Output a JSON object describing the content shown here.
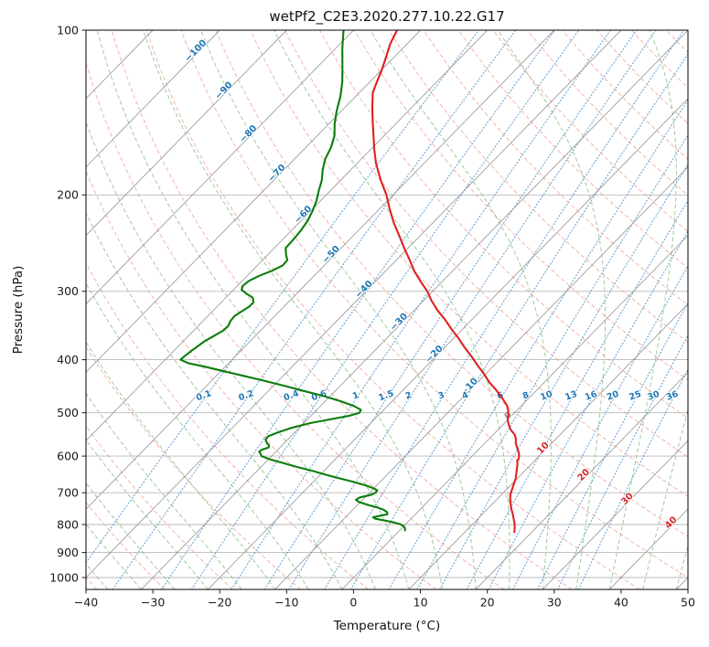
{
  "title": "wetPf2_C2E3.2020.277.10.22.G17",
  "axes": {
    "x_label": "Temperature (°C)",
    "y_label": "Pressure (hPa)",
    "x_ticks": [
      {
        "v": -40,
        "label": "−40"
      },
      {
        "v": -30,
        "label": "−30"
      },
      {
        "v": -20,
        "label": "−20"
      },
      {
        "v": -10,
        "label": "−10"
      },
      {
        "v": 0,
        "label": "0"
      },
      {
        "v": 10,
        "label": "10"
      },
      {
        "v": 20,
        "label": "20"
      },
      {
        "v": 30,
        "label": "30"
      },
      {
        "v": 40,
        "label": "40"
      },
      {
        "v": 50,
        "label": "50"
      }
    ],
    "y_ticks": [
      {
        "v": 100,
        "label": "100"
      },
      {
        "v": 200,
        "label": "200"
      },
      {
        "v": 300,
        "label": "300"
      },
      {
        "v": 400,
        "label": "400"
      },
      {
        "v": 500,
        "label": "500"
      },
      {
        "v": 600,
        "label": "600"
      },
      {
        "v": 700,
        "label": "700"
      },
      {
        "v": 800,
        "label": "800"
      },
      {
        "v": 900,
        "label": "900"
      },
      {
        "v": 1000,
        "label": "1000"
      }
    ]
  },
  "chart_data": {
    "type": "line",
    "variant": "skew-T log-p sounding",
    "title": "wetPf2_C2E3.2020.277.10.22.G17",
    "xlabel": "Temperature (°C)",
    "ylabel": "Pressure (hPa)",
    "xlim": [
      -40,
      50
    ],
    "pressure_lim": [
      100,
      1051
    ],
    "skew_deg_per_decade": 80,
    "grid": true,
    "isotherms": {
      "start": -150,
      "end": 50,
      "step": 10
    },
    "isotherm_labels": [
      {
        "label": "−100",
        "t": -100,
        "p": 110
      },
      {
        "label": "−90",
        "t": -90,
        "p": 130
      },
      {
        "label": "−80",
        "t": -80,
        "p": 156
      },
      {
        "label": "−70",
        "t": -70,
        "p": 184
      },
      {
        "label": "−60",
        "t": -60,
        "p": 219
      },
      {
        "label": "−50",
        "t": -50,
        "p": 259
      },
      {
        "label": "−40",
        "t": -40,
        "p": 300
      },
      {
        "label": "−30",
        "t": -30,
        "p": 344
      },
      {
        "label": "−20",
        "t": -20,
        "p": 394
      },
      {
        "label": "−10",
        "t": -10,
        "p": 452
      },
      {
        "label": "0",
        "t": 0,
        "p": 510
      },
      {
        "label": "10",
        "t": 10,
        "p": 585
      },
      {
        "label": "20",
        "t": 20,
        "p": 655
      },
      {
        "label": "30",
        "t": 30,
        "p": 724
      },
      {
        "label": "40",
        "t": 40,
        "p": 800
      }
    ],
    "mixing_ratios": [
      {
        "label": "0.1",
        "w": 0.1
      },
      {
        "label": "0.2",
        "w": 0.2
      },
      {
        "label": "0.4",
        "w": 0.4
      },
      {
        "label": "0.6",
        "w": 0.6
      },
      {
        "label": "1",
        "w": 1
      },
      {
        "label": "1.5",
        "w": 1.5
      },
      {
        "label": "2",
        "w": 2
      },
      {
        "label": "3",
        "w": 3
      },
      {
        "label": "4",
        "w": 4
      },
      {
        "label": "6",
        "w": 6
      },
      {
        "label": "8",
        "w": 8
      },
      {
        "label": "10",
        "w": 10
      },
      {
        "label": "13",
        "w": 13
      },
      {
        "label": "16",
        "w": 16
      },
      {
        "label": "20",
        "w": 20
      },
      {
        "label": "25",
        "w": 25
      },
      {
        "label": "30",
        "w": 30
      },
      {
        "label": "36",
        "w": 36
      }
    ],
    "mixing_label_pressure": 470,
    "dry_adiabats": {
      "start": -40,
      "end": 200,
      "step": 10
    },
    "moist_adiabats": {
      "start": -40,
      "end": 50,
      "step": 5
    },
    "series": [
      {
        "name": "temperature",
        "color": "#e02020",
        "points": [
          [
            100,
            -73.5
          ],
          [
            106,
            -72.5
          ],
          [
            112,
            -71.2
          ],
          [
            118,
            -70.0
          ],
          [
            124,
            -69.0
          ],
          [
            130,
            -68.0
          ],
          [
            138,
            -66.0
          ],
          [
            146,
            -64.0
          ],
          [
            155,
            -61.8
          ],
          [
            165,
            -59.5
          ],
          [
            175,
            -57.2
          ],
          [
            188,
            -54.0
          ],
          [
            200,
            -51.0
          ],
          [
            212,
            -48.5
          ],
          [
            225,
            -45.8
          ],
          [
            238,
            -43.0
          ],
          [
            250,
            -40.6
          ],
          [
            263,
            -38.0
          ],
          [
            275,
            -35.8
          ],
          [
            288,
            -33.2
          ],
          [
            300,
            -30.8
          ],
          [
            312,
            -28.8
          ],
          [
            325,
            -26.5
          ],
          [
            338,
            -24.0
          ],
          [
            352,
            -21.6
          ],
          [
            366,
            -19.2
          ],
          [
            380,
            -17.0
          ],
          [
            395,
            -14.6
          ],
          [
            410,
            -12.4
          ],
          [
            425,
            -10.2
          ],
          [
            440,
            -8.2
          ],
          [
            455,
            -6.0
          ],
          [
            470,
            -4.0
          ],
          [
            485,
            -2.2
          ],
          [
            495,
            -1.3
          ],
          [
            505,
            -0.6
          ],
          [
            515,
            0.0
          ],
          [
            525,
            0.8
          ],
          [
            538,
            2.0
          ],
          [
            548,
            3.2
          ],
          [
            558,
            4.0
          ],
          [
            568,
            4.6
          ],
          [
            578,
            5.4
          ],
          [
            588,
            6.2
          ],
          [
            598,
            6.9
          ],
          [
            606,
            7.3
          ],
          [
            612,
            7.4
          ],
          [
            620,
            7.9
          ],
          [
            630,
            8.4
          ],
          [
            645,
            9.1
          ],
          [
            660,
            9.8
          ],
          [
            675,
            10.3
          ],
          [
            690,
            10.8
          ],
          [
            705,
            11.3
          ],
          [
            720,
            12.0
          ],
          [
            735,
            12.8
          ],
          [
            750,
            13.6
          ],
          [
            765,
            14.5
          ],
          [
            780,
            15.3
          ],
          [
            795,
            16.1
          ],
          [
            808,
            16.7
          ],
          [
            818,
            17.1
          ],
          [
            826,
            17.4
          ]
        ]
      },
      {
        "name": "dewpoint",
        "color": "#0a7d0a",
        "points": [
          [
            100,
            -81.5
          ],
          [
            108,
            -79.0
          ],
          [
            116,
            -76.5
          ],
          [
            124,
            -74.2
          ],
          [
            132,
            -72.3
          ],
          [
            140,
            -70.8
          ],
          [
            148,
            -69.2
          ],
          [
            156,
            -67.4
          ],
          [
            164,
            -66.2
          ],
          [
            172,
            -65.4
          ],
          [
            180,
            -64.2
          ],
          [
            188,
            -62.8
          ],
          [
            196,
            -61.8
          ],
          [
            205,
            -60.6
          ],
          [
            214,
            -59.7
          ],
          [
            223,
            -59.0
          ],
          [
            232,
            -58.6
          ],
          [
            241,
            -58.4
          ],
          [
            250,
            -58.3
          ],
          [
            257,
            -57.3
          ],
          [
            263,
            -56.3
          ],
          [
            269,
            -56.2
          ],
          [
            275,
            -57.0
          ],
          [
            281,
            -58.2
          ],
          [
            287,
            -59.0
          ],
          [
            293,
            -59.2
          ],
          [
            298,
            -58.8
          ],
          [
            303,
            -57.5
          ],
          [
            308,
            -56.0
          ],
          [
            314,
            -55.2
          ],
          [
            320,
            -55.2
          ],
          [
            326,
            -55.6
          ],
          [
            333,
            -56.0
          ],
          [
            340,
            -55.9
          ],
          [
            347,
            -55.5
          ],
          [
            354,
            -55.6
          ],
          [
            362,
            -56.2
          ],
          [
            370,
            -56.8
          ],
          [
            378,
            -57.1
          ],
          [
            386,
            -57.4
          ],
          [
            394,
            -57.6
          ],
          [
            400,
            -57.7
          ],
          [
            406,
            -56.0
          ],
          [
            412,
            -53.0
          ],
          [
            420,
            -49.5
          ],
          [
            428,
            -46.0
          ],
          [
            436,
            -42.5
          ],
          [
            446,
            -38.5
          ],
          [
            456,
            -34.8
          ],
          [
            466,
            -31.0
          ],
          [
            476,
            -27.8
          ],
          [
            486,
            -25.0
          ],
          [
            494,
            -23.4
          ],
          [
            500,
            -23.2
          ],
          [
            506,
            -24.2
          ],
          [
            514,
            -26.6
          ],
          [
            522,
            -29.0
          ],
          [
            532,
            -31.0
          ],
          [
            542,
            -32.4
          ],
          [
            552,
            -33.4
          ],
          [
            560,
            -33.3
          ],
          [
            568,
            -32.6
          ],
          [
            574,
            -31.9
          ],
          [
            579,
            -31.7
          ],
          [
            584,
            -32.4
          ],
          [
            589,
            -32.5
          ],
          [
            594,
            -32.0
          ],
          [
            600,
            -31.5
          ],
          [
            608,
            -29.8
          ],
          [
            618,
            -27.2
          ],
          [
            628,
            -24.6
          ],
          [
            638,
            -21.8
          ],
          [
            648,
            -19.4
          ],
          [
            658,
            -16.8
          ],
          [
            668,
            -14.2
          ],
          [
            678,
            -11.8
          ],
          [
            686,
            -10.2
          ],
          [
            693,
            -9.2
          ],
          [
            700,
            -9.1
          ],
          [
            707,
            -9.6
          ],
          [
            714,
            -10.8
          ],
          [
            721,
            -11.0
          ],
          [
            728,
            -10.2
          ],
          [
            736,
            -8.6
          ],
          [
            744,
            -6.8
          ],
          [
            752,
            -5.4
          ],
          [
            760,
            -4.5
          ],
          [
            766,
            -4.2
          ],
          [
            771,
            -5.0
          ],
          [
            776,
            -5.9
          ],
          [
            781,
            -5.3
          ],
          [
            787,
            -3.6
          ],
          [
            793,
            -2.0
          ],
          [
            799,
            -0.8
          ],
          [
            806,
            0.0
          ],
          [
            813,
            0.5
          ],
          [
            820,
            0.8
          ]
        ]
      }
    ]
  },
  "style": {
    "isotherm_color": "#999999",
    "grid_color": "#b9b9b9",
    "dry_adiabat_color": "#f0a098",
    "moist_adiabat_color": "#8dc28d",
    "mixing_color": "#3d85c8",
    "neg_label_color": "#1f77b4",
    "zero_label_color": "#8a8a8a",
    "pos_label_color": "#d62728",
    "tick_color": "#1a1a1a",
    "border_color": "#000000"
  }
}
